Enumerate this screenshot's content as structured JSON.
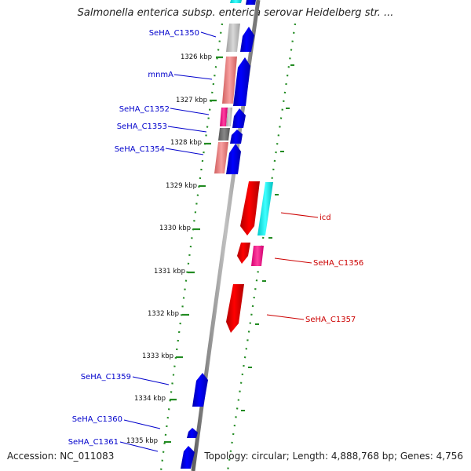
{
  "title": "Salmonella enterica subsp. enterica serovar Heidelberg str. ...",
  "accession": "Accession: NC_011083",
  "topology": "Topology: circular; Length: 4,888,768 bp; Genes: 4,756",
  "colors": {
    "forward_cds": "#0000ee",
    "reverse_cds": "#ee0000",
    "forward_label": "#0000cc",
    "reverse_label": "#cc0000",
    "tick_dots": "#228b22",
    "backbone": "#808080"
  },
  "kbp_ticks": [
    "1326 kbp",
    "1327 kbp",
    "1328 kbp",
    "1329 kbp",
    "1330 kbp",
    "1331 kbp",
    "1332 kbp",
    "1333 kbp",
    "1334 kbp",
    "1335 kbp"
  ],
  "forward_genes": [
    {
      "label": "SeHA_C1350"
    },
    {
      "label": "mnmA"
    },
    {
      "label": "SeHA_C1352"
    },
    {
      "label": "SeHA_C1353"
    },
    {
      "label": "SeHA_C1354"
    },
    {
      "label": "SeHA_C1359"
    },
    {
      "label": "SeHA_C1360"
    },
    {
      "label": "SeHA_C1361"
    }
  ],
  "reverse_genes": [
    {
      "label": "icd"
    },
    {
      "label": "SeHA_C1356"
    },
    {
      "label": "SeHA_C1357"
    }
  ]
}
